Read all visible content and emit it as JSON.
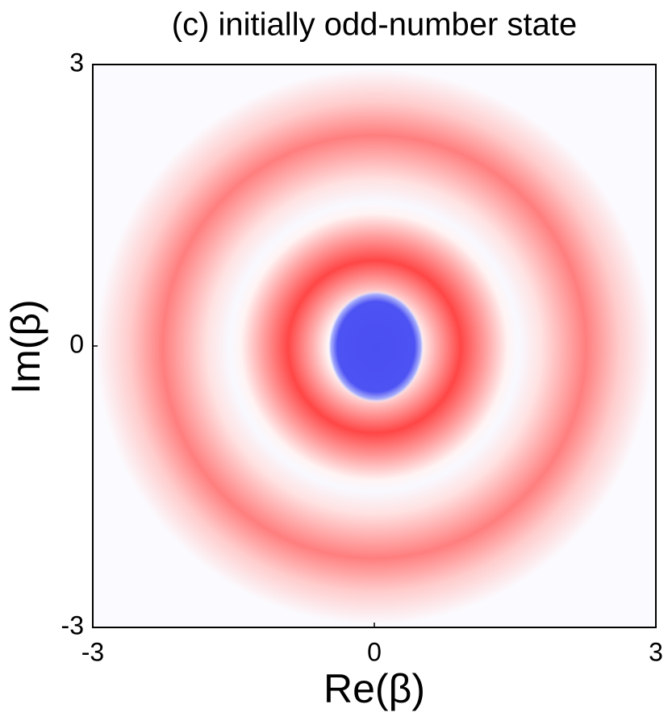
{
  "chart_data": {
    "type": "density",
    "title": "(c)  initially odd-number state",
    "x_label": "Re(β)",
    "y_label": "Im(β)",
    "xlim": [
      -3,
      3
    ],
    "ylim": [
      -3,
      3
    ],
    "xticks": [
      -3,
      0,
      3
    ],
    "yticks": [
      -3,
      0,
      3
    ]
  }
}
